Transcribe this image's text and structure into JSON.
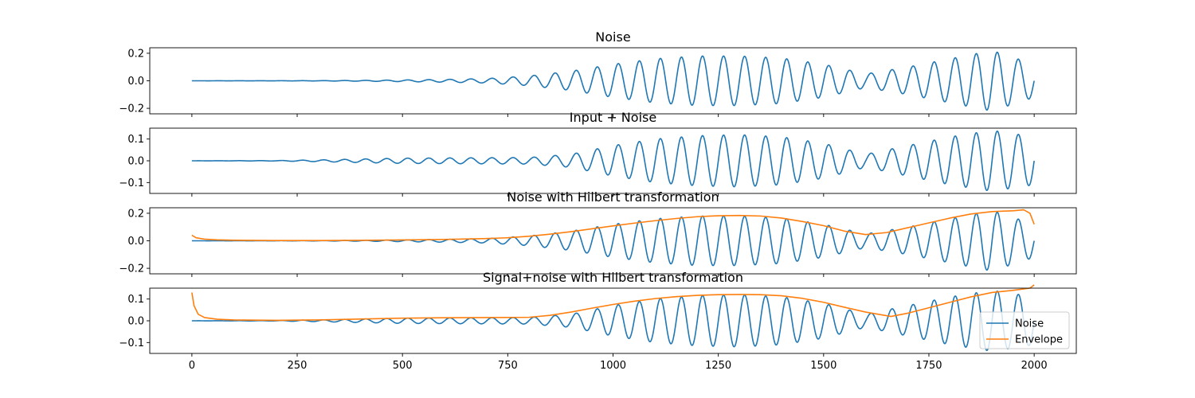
{
  "chart_data": [
    {
      "type": "line",
      "title": "Noise",
      "xlim": [
        -100,
        2100
      ],
      "ylim": [
        -0.24,
        0.24
      ],
      "yticks": [
        0.2,
        0.0,
        -0.2
      ],
      "ytick_labels": [
        "0.2",
        "0.0",
        "−0.2"
      ],
      "xticks": [
        0,
        250,
        500,
        750,
        1000,
        1250,
        1500,
        1750,
        2000
      ],
      "show_xtick_labels": false,
      "series": [
        {
          "name": "",
          "color": "#1f77b4",
          "kind": "oscillation",
          "periods": 40,
          "phase": 0,
          "amplitude": {
            "x": [
              0,
              300,
              400,
              500,
              600,
              700,
              800,
              900,
              1000,
              1100,
              1200,
              1300,
              1400,
              1500,
              1600,
              1700,
              1800,
              1900,
              2000
            ],
            "y": [
              0,
              0.001,
              0.003,
              0.006,
              0.01,
              0.016,
              0.035,
              0.07,
              0.12,
              0.16,
              0.18,
              0.18,
              0.165,
              0.12,
              0.05,
              0.1,
              0.16,
              0.22,
              0.12
            ]
          }
        }
      ]
    },
    {
      "type": "line",
      "title": "Input + Noise",
      "xlim": [
        -100,
        2100
      ],
      "ylim": [
        -0.15,
        0.15
      ],
      "yticks": [
        0.1,
        0.0,
        -0.1
      ],
      "ytick_labels": [
        "0.1",
        "0.0",
        "−0.1"
      ],
      "xticks": [
        0,
        250,
        500,
        750,
        1000,
        1250,
        1500,
        1750,
        2000
      ],
      "show_xtick_labels": false,
      "series": [
        {
          "name": "",
          "color": "#1f77b4",
          "kind": "oscillation",
          "periods": 40,
          "phase": 0,
          "amplitude": {
            "x": [
              0,
              200,
              300,
              400,
              500,
              600,
              700,
              800,
              900,
              1000,
              1100,
              1200,
              1300,
              1400,
              1500,
              1600,
              1700,
              1800,
              1900,
              2000
            ],
            "y": [
              0,
              0.001,
              0.004,
              0.008,
              0.012,
              0.013,
              0.014,
              0.015,
              0.03,
              0.07,
              0.1,
              0.115,
              0.12,
              0.11,
              0.08,
              0.03,
              0.07,
              0.11,
              0.14,
              0.11
            ]
          }
        }
      ]
    },
    {
      "type": "line",
      "title": "Noise with Hilbert transformation",
      "xlim": [
        -100,
        2100
      ],
      "ylim": [
        -0.24,
        0.24
      ],
      "yticks": [
        0.2,
        0.0,
        -0.2
      ],
      "ytick_labels": [
        "0.2",
        "0.0",
        "−0.2"
      ],
      "xticks": [
        0,
        250,
        500,
        750,
        1000,
        1250,
        1500,
        1750,
        2000
      ],
      "show_xtick_labels": false,
      "series": [
        {
          "name": "",
          "color": "#1f77b4",
          "kind": "oscillation",
          "periods": 40,
          "phase": 0,
          "amplitude": {
            "x": [
              0,
              300,
              400,
              500,
              600,
              700,
              800,
              900,
              1000,
              1100,
              1200,
              1300,
              1400,
              1500,
              1600,
              1700,
              1800,
              1900,
              2000
            ],
            "y": [
              0,
              0.001,
              0.003,
              0.006,
              0.01,
              0.016,
              0.035,
              0.07,
              0.12,
              0.16,
              0.18,
              0.18,
              0.165,
              0.12,
              0.05,
              0.1,
              0.16,
              0.22,
              0.12
            ]
          }
        },
        {
          "name": "",
          "color": "#ff7f0e",
          "kind": "line",
          "x": [
            0,
            10,
            30,
            60,
            100,
            200,
            300,
            400,
            500,
            600,
            700,
            750,
            800,
            850,
            900,
            950,
            1000,
            1050,
            1100,
            1150,
            1200,
            1250,
            1300,
            1350,
            1400,
            1450,
            1500,
            1550,
            1600,
            1650,
            1700,
            1750,
            1800,
            1850,
            1900,
            1950,
            1975,
            1990,
            2000
          ],
          "y": [
            0.04,
            0.022,
            0.012,
            0.007,
            0.004,
            0.002,
            0.002,
            0.003,
            0.006,
            0.01,
            0.016,
            0.022,
            0.033,
            0.048,
            0.066,
            0.087,
            0.108,
            0.128,
            0.146,
            0.162,
            0.175,
            0.182,
            0.184,
            0.18,
            0.165,
            0.14,
            0.11,
            0.07,
            0.045,
            0.06,
            0.095,
            0.13,
            0.165,
            0.195,
            0.212,
            0.218,
            0.225,
            0.2,
            0.12
          ]
        }
      ]
    },
    {
      "type": "line",
      "title": "Signal+noise with Hilbert transformation",
      "xlim": [
        -100,
        2100
      ],
      "ylim": [
        -0.15,
        0.15
      ],
      "yticks": [
        0.1,
        0.0,
        -0.1
      ],
      "ytick_labels": [
        "0.1",
        "0.0",
        "−0.1"
      ],
      "xticks": [
        0,
        250,
        500,
        750,
        1000,
        1250,
        1500,
        1750,
        2000
      ],
      "xtick_labels": [
        "0",
        "250",
        "500",
        "750",
        "1000",
        "1250",
        "1500",
        "1750",
        "2000"
      ],
      "show_xtick_labels": true,
      "legend": {
        "placement": "lower-right",
        "entries": [
          "Noise",
          "Envelope"
        ]
      },
      "series": [
        {
          "name": "Noise",
          "color": "#1f77b4",
          "kind": "oscillation",
          "periods": 40,
          "phase": 0,
          "amplitude": {
            "x": [
              0,
              200,
              300,
              400,
              500,
              600,
              700,
              800,
              900,
              1000,
              1100,
              1200,
              1300,
              1400,
              1500,
              1600,
              1700,
              1800,
              1900,
              2000
            ],
            "y": [
              0,
              0.001,
              0.004,
              0.008,
              0.012,
              0.013,
              0.014,
              0.015,
              0.03,
              0.07,
              0.1,
              0.115,
              0.12,
              0.11,
              0.08,
              0.03,
              0.07,
              0.11,
              0.14,
              0.11
            ]
          }
        },
        {
          "name": "Envelope",
          "color": "#ff7f0e",
          "kind": "line",
          "x": [
            0,
            5,
            15,
            30,
            60,
            100,
            200,
            300,
            400,
            500,
            600,
            700,
            800,
            850,
            900,
            950,
            1000,
            1050,
            1100,
            1150,
            1200,
            1250,
            1300,
            1350,
            1400,
            1450,
            1500,
            1550,
            1600,
            1660,
            1700,
            1750,
            1800,
            1850,
            1900,
            1950,
            1990,
            2000
          ],
          "y": [
            0.13,
            0.07,
            0.03,
            0.015,
            0.007,
            0.004,
            0.002,
            0.004,
            0.008,
            0.012,
            0.014,
            0.015,
            0.016,
            0.025,
            0.04,
            0.058,
            0.075,
            0.09,
            0.102,
            0.111,
            0.117,
            0.12,
            0.121,
            0.12,
            0.115,
            0.103,
            0.085,
            0.062,
            0.04,
            0.02,
            0.035,
            0.06,
            0.085,
            0.11,
            0.13,
            0.14,
            0.15,
            0.165
          ]
        }
      ]
    }
  ]
}
